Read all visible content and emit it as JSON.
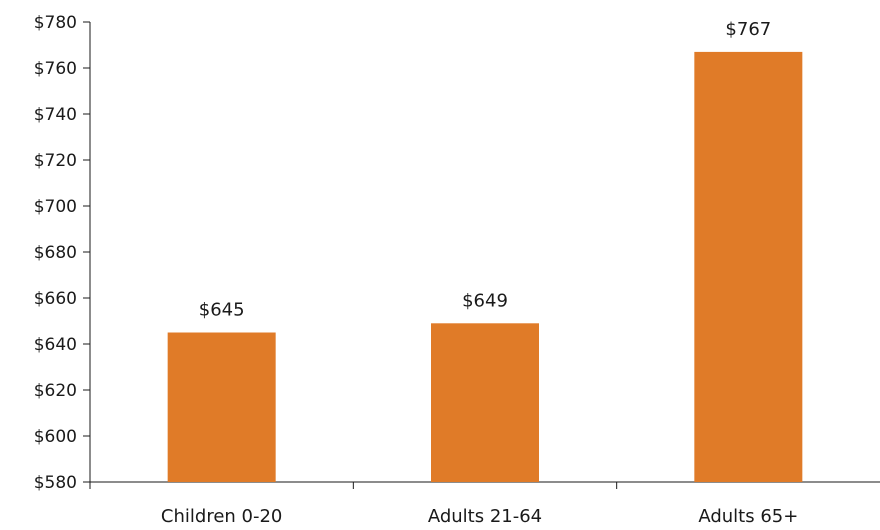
{
  "chart_data": {
    "type": "bar",
    "categories": [
      "Children 0-20",
      "Adults 21-64",
      "Adults 65+"
    ],
    "values": [
      645,
      649,
      767
    ],
    "data_labels": [
      "$645",
      "$649",
      "$767"
    ],
    "title": "",
    "xlabel": "",
    "ylabel": "",
    "ylim": [
      580,
      780
    ],
    "y_ticks": [
      580,
      600,
      620,
      640,
      660,
      680,
      700,
      720,
      740,
      760,
      780
    ],
    "y_tick_labels": [
      "$580",
      "$600",
      "$620",
      "$640",
      "$660",
      "$680",
      "$700",
      "$720",
      "$740",
      "$760",
      "$780"
    ],
    "bar_color": "#E07B28",
    "grid": false,
    "legend": "none"
  }
}
